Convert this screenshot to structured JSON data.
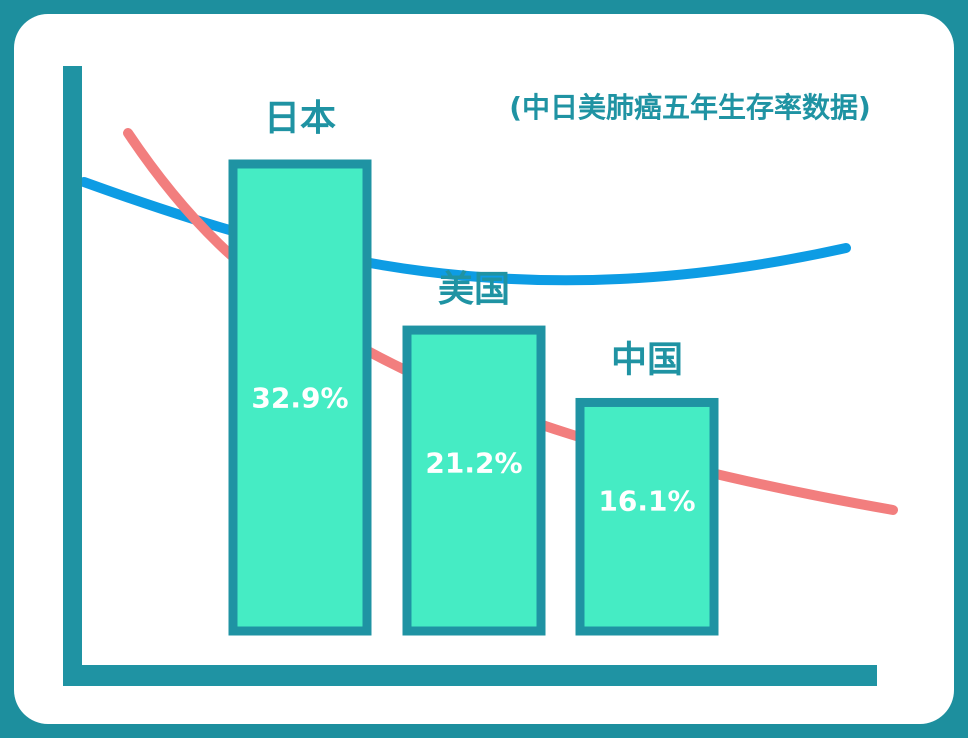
{
  "chart_data": {
    "type": "bar",
    "title": "(中日美肺癌五年生存率数据)",
    "categories": [
      "日本",
      "美国",
      "中国"
    ],
    "values": [
      32.9,
      21.2,
      16.1
    ],
    "value_labels": [
      "32.9%",
      "21.2%",
      "16.1%"
    ],
    "unit": "%",
    "grid": false,
    "legend": "none",
    "decorative_curves": [
      {
        "color": "#0d9ce4"
      },
      {
        "color": "#f27e7e"
      }
    ],
    "colors": {
      "bar_fill": "#45ecc4",
      "bar_stroke": "#1f93a3",
      "axis": "#1f93a3",
      "frame": "#1d8f9e"
    }
  }
}
